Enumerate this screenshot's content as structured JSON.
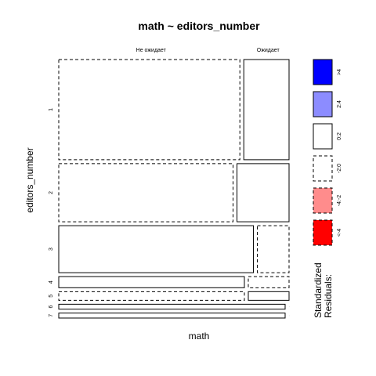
{
  "chart_data": {
    "type": "mosaic",
    "title": "math ~ editors_number",
    "xlabel": "math",
    "ylabel": "editors_number",
    "columns": [
      "Не ожидает",
      "Ожидает"
    ],
    "rows": [
      "1",
      "2",
      "3",
      "4",
      "5",
      "6",
      "7"
    ],
    "cells": [
      {
        "row": "1",
        "col": "Не ожидает",
        "share": 0.8,
        "residual_class": "-2:0"
      },
      {
        "row": "1",
        "col": "Ожидает",
        "share": 0.2,
        "residual_class": "0:2"
      },
      {
        "row": "2",
        "col": "Не ожидает",
        "share": 0.77,
        "residual_class": "-2:0"
      },
      {
        "row": "2",
        "col": "Ожидает",
        "share": 0.23,
        "residual_class": "0:2"
      },
      {
        "row": "3",
        "col": "Не ожидает",
        "share": 0.86,
        "residual_class": "0:2"
      },
      {
        "row": "3",
        "col": "Ожидает",
        "share": 0.14,
        "residual_class": "-2:0"
      },
      {
        "row": "4",
        "col": "Не ожидает",
        "share": 0.82,
        "residual_class": "0:2"
      },
      {
        "row": "4",
        "col": "Ожидает",
        "share": 0.18,
        "residual_class": "-2:0"
      },
      {
        "row": "5",
        "col": "Не ожидает",
        "share": 0.82,
        "residual_class": "-2:0"
      },
      {
        "row": "5",
        "col": "Ожидает",
        "share": 0.18,
        "residual_class": "0:2"
      },
      {
        "row": "6",
        "col": "Не ожидает",
        "share": 1.0,
        "residual_class": "0:2"
      },
      {
        "row": "6",
        "col": "Ожидает",
        "share": 0.0,
        "residual_class": "-2:0"
      },
      {
        "row": "7",
        "col": "Не ожидает",
        "share": 1.0,
        "residual_class": "0:2"
      },
      {
        "row": "7",
        "col": "Ожидает",
        "share": 0.0,
        "residual_class": "-2:0"
      }
    ],
    "row_shares": [
      0.405,
      0.235,
      0.19,
      0.045,
      0.035,
      0.02,
      0.02
    ],
    "legend": {
      "title_lines": [
        "Standardized",
        "Residuals:"
      ],
      "placement": "right",
      "entries": [
        {
          "label": ">4",
          "fill": "#0000ff",
          "dashed": false
        },
        {
          "label": "2:4",
          "fill": "#8c8cff",
          "dashed": false
        },
        {
          "label": "0:2",
          "fill": "#ffffff",
          "dashed": false
        },
        {
          "label": "-2:0",
          "fill": "#ffffff",
          "dashed": true
        },
        {
          "label": "-4:-2",
          "fill": "#ff8c8c",
          "dashed": true
        },
        {
          "label": "<-4",
          "fill": "#ff0000",
          "dashed": true
        }
      ]
    }
  }
}
